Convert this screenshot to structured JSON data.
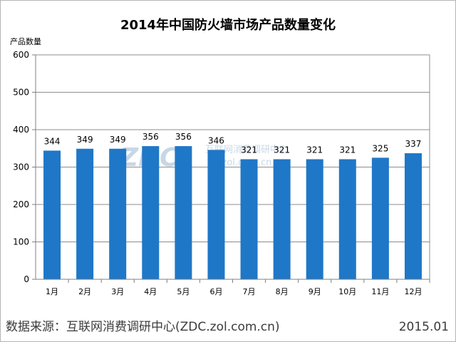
{
  "chart_data": {
    "type": "bar",
    "title": "2014年中国防火墙市场产品数量变化",
    "ylabel": "产品数量",
    "xlabel": "",
    "categories": [
      "1月",
      "2月",
      "3月",
      "4月",
      "5月",
      "6月",
      "7月",
      "8月",
      "9月",
      "10月",
      "11月",
      "12月"
    ],
    "values": [
      344,
      349,
      349,
      356,
      356,
      346,
      321,
      321,
      321,
      321,
      325,
      337
    ],
    "ylim": [
      0,
      600
    ],
    "yticks": [
      0,
      100,
      200,
      300,
      400,
      500,
      600
    ],
    "grid": true,
    "bar_color": "#1f77c7"
  },
  "watermark": {
    "logo": "ZDC",
    "cn": "互联网消费调研中心",
    "url": "dc.zol.com.cn"
  },
  "footer": {
    "source": "数据来源：互联网消费调研中心(ZDC.zol.com.cn)",
    "date": "2015.01"
  }
}
